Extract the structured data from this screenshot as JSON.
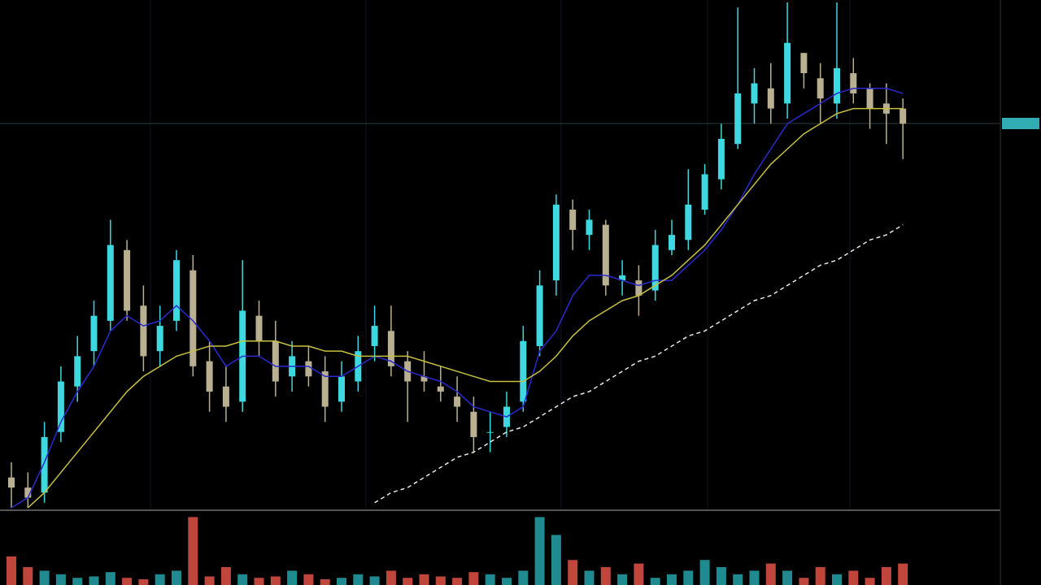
{
  "chart_data": [
    {
      "type": "candlestick",
      "ylim": [
        0,
        100
      ],
      "up_color": "#3dd8e0",
      "down_color": "#b8b090",
      "open": [
        6,
        4,
        3,
        15,
        24,
        31,
        37,
        51,
        40,
        31,
        37,
        47,
        29,
        24,
        21,
        38,
        33,
        26,
        29,
        27,
        21,
        25,
        32,
        35,
        29,
        26,
        24,
        22,
        19,
        15,
        16,
        21,
        32,
        45,
        59,
        54,
        56,
        45,
        45,
        43,
        51,
        53,
        59,
        65,
        72,
        80,
        83,
        80,
        90,
        85,
        80,
        86,
        83,
        80,
        79
      ],
      "high": [
        9,
        7,
        17,
        28,
        34,
        41,
        57,
        53,
        44,
        40,
        51,
        50,
        33,
        28,
        49,
        41,
        37,
        33,
        32,
        30,
        29,
        34,
        40,
        40,
        31,
        31,
        28,
        26,
        22,
        19,
        23,
        36,
        47,
        62,
        61,
        59,
        57,
        49,
        48,
        55,
        57,
        67,
        68,
        76,
        99,
        87,
        88,
        100,
        90,
        88,
        100,
        89,
        84,
        84,
        81
      ],
      "low": [
        0,
        0,
        1,
        13,
        21,
        28,
        35,
        37,
        27,
        28,
        35,
        26,
        19,
        17,
        19,
        30,
        22,
        23,
        24,
        17,
        19,
        23,
        29,
        26,
        17,
        23,
        21,
        17,
        11,
        11,
        14,
        19,
        30,
        42,
        51,
        51,
        42,
        42,
        38,
        41,
        50,
        51,
        58,
        63,
        71,
        76,
        76,
        77,
        83,
        76,
        77,
        80,
        75,
        72,
        69
      ],
      "close": [
        4,
        2,
        14,
        25,
        30,
        38,
        52,
        39,
        30,
        36,
        49,
        28,
        23,
        20,
        39,
        33,
        25,
        30,
        26,
        20,
        26,
        31,
        36,
        28,
        25,
        25,
        23,
        20,
        14,
        15,
        20,
        33,
        44,
        60,
        55,
        57,
        44,
        46,
        42,
        52,
        54,
        60,
        66,
        73,
        82,
        84,
        79,
        92,
        86,
        81,
        87,
        82,
        79,
        78,
        76
      ],
      "series": [
        {
          "color": "#2a2ad0",
          "style": "solid",
          "values": [
            0,
            2,
            9,
            17,
            23,
            28,
            35,
            38,
            36,
            37,
            40,
            37,
            33,
            28,
            30,
            30,
            28,
            28,
            28,
            26,
            26,
            28,
            30,
            29,
            27,
            26,
            25,
            23,
            20,
            19,
            18,
            20,
            31,
            35,
            42,
            46,
            46,
            45,
            44,
            45,
            45,
            48,
            51,
            55,
            60,
            66,
            71,
            76,
            78,
            80,
            82,
            83,
            83,
            83,
            82
          ]
        },
        {
          "color": "#c8c040",
          "style": "solid",
          "values": [
            null,
            0,
            3,
            7,
            11,
            15,
            19,
            23,
            26,
            28,
            30,
            31,
            32,
            32,
            33,
            33,
            33,
            32,
            32,
            31,
            31,
            30,
            30,
            30,
            30,
            29,
            28,
            27,
            26,
            25,
            25,
            25,
            27,
            30,
            34,
            37,
            39,
            41,
            42,
            44,
            46,
            49,
            52,
            56,
            60,
            64,
            68,
            71,
            74,
            76,
            78,
            79,
            79,
            79,
            79
          ]
        },
        {
          "color": "#e8e8e8",
          "style": "dashed",
          "values": [
            null,
            null,
            null,
            null,
            null,
            null,
            null,
            null,
            null,
            null,
            null,
            null,
            null,
            null,
            null,
            null,
            null,
            null,
            null,
            null,
            null,
            null,
            1,
            3,
            4,
            6,
            8,
            10,
            11,
            13,
            15,
            16,
            18,
            20,
            22,
            23,
            25,
            27,
            29,
            30,
            32,
            34,
            35,
            37,
            39,
            41,
            42,
            44,
            46,
            48,
            49,
            51,
            53,
            54,
            56
          ]
        }
      ]
    },
    {
      "type": "volume",
      "ylim": [
        0,
        100
      ],
      "values": [
        40,
        25,
        20,
        15,
        10,
        12,
        18,
        10,
        8,
        15,
        20,
        95,
        12,
        25,
        15,
        10,
        12,
        20,
        15,
        8,
        10,
        15,
        12,
        20,
        10,
        15,
        12,
        10,
        18,
        15,
        10,
        20,
        95,
        70,
        35,
        20,
        25,
        15,
        30,
        10,
        15,
        20,
        35,
        25,
        15,
        20,
        30,
        20,
        10,
        25,
        15,
        20,
        10,
        25,
        30
      ]
    }
  ]
}
